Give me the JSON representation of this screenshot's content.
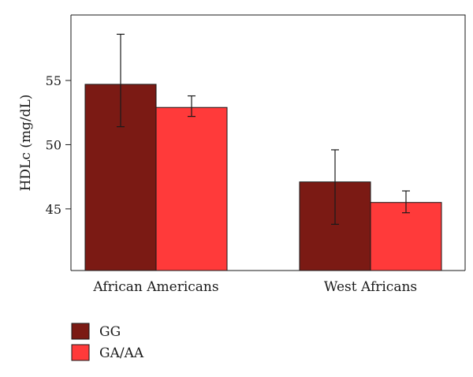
{
  "chart_data": {
    "type": "bar",
    "title": "",
    "xlabel": "",
    "ylabel": "HDLc (mg/dL)",
    "categories": [
      "African Americans",
      "West Africans"
    ],
    "series": [
      {
        "name": "GG",
        "color": "#7b1a14",
        "values": [
          54.7,
          47.1
        ],
        "error_low": [
          51.4,
          43.8
        ],
        "error_high": [
          58.6,
          49.6
        ]
      },
      {
        "name": "GA/AA",
        "color": "#ff3a3a",
        "values": [
          52.9,
          45.5
        ],
        "error_low": [
          52.2,
          44.7
        ],
        "error_high": [
          53.8,
          46.4
        ]
      }
    ],
    "ylim": [
      40.2,
      60.1
    ],
    "yticks": [
      45,
      50,
      55
    ],
    "grid": false,
    "legend_position": "bottom-left"
  }
}
